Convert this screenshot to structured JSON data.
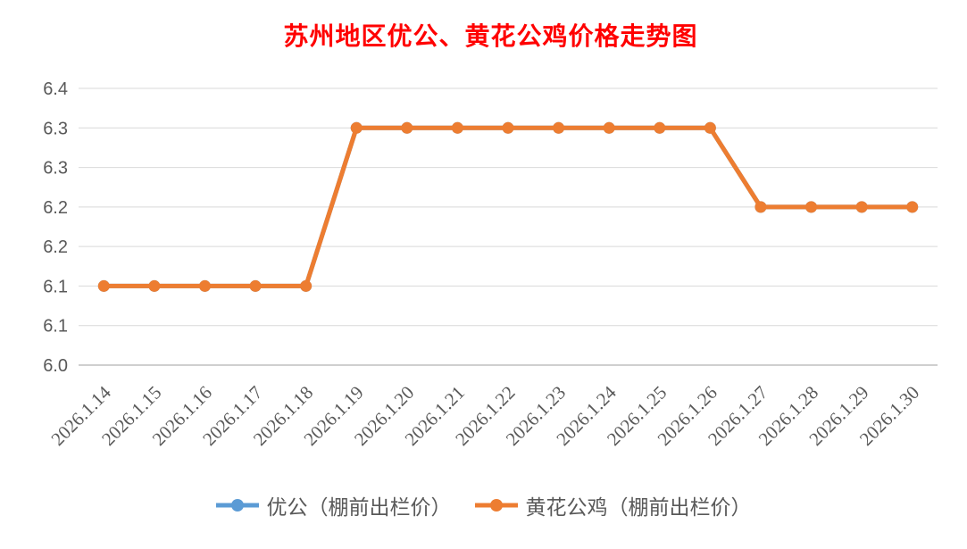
{
  "chart_data": {
    "type": "line",
    "title": "苏州地区优公、黄花公鸡价格走势图",
    "title_color": "#ff0000",
    "categories": [
      "2026.1.14",
      "2026.1.15",
      "2026.1.16",
      "2026.1.17",
      "2026.1.18",
      "2026.1.19",
      "2026.1.20",
      "2026.1.21",
      "2026.1.22",
      "2026.1.23",
      "2026.1.24",
      "2026.1.25",
      "2026.1.26",
      "2026.1.27",
      "2026.1.28",
      "2026.1.29",
      "2026.1.30"
    ],
    "series": [
      {
        "name": "优公（棚前出栏价）",
        "color": "#5b9bd5",
        "values": [
          6.1,
          6.1,
          6.1,
          6.1,
          6.1,
          6.3,
          6.3,
          6.3,
          6.3,
          6.3,
          6.3,
          6.3,
          6.3,
          6.2,
          6.2,
          6.2,
          6.2
        ],
        "note": "line coincides with the 黄花公鸡 series and is hidden beneath it in the plot"
      },
      {
        "name": "黄花公鸡（棚前出栏价）",
        "color": "#ed7d31",
        "values": [
          6.1,
          6.1,
          6.1,
          6.1,
          6.1,
          6.3,
          6.3,
          6.3,
          6.3,
          6.3,
          6.3,
          6.3,
          6.3,
          6.2,
          6.2,
          6.2,
          6.2
        ]
      }
    ],
    "y_axis": {
      "tick_labels_top_to_bottom": [
        "6.4",
        "6.3",
        "6.3",
        "6.2",
        "6.2",
        "6.1",
        "6.1",
        "6.0"
      ],
      "ylim": [
        6.0,
        6.35
      ],
      "label_color": "#595959"
    },
    "x_axis": {
      "label_rotation_deg": -45,
      "label_color": "#595959"
    },
    "grid": true,
    "gridline_color": "#d9d9d9",
    "axis_line_color": "#bfbfbf",
    "legend_position": "bottom",
    "marker": "circle"
  }
}
